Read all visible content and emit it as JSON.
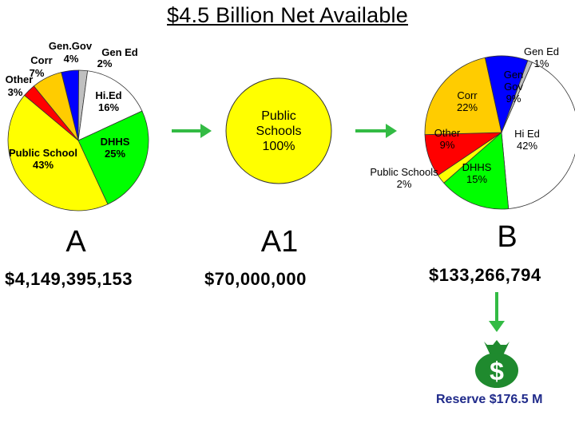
{
  "title": "$4.5 Billion Net Available",
  "arrow_color": "#33bb44",
  "chart_data": [
    {
      "type": "pie",
      "id": "A",
      "caption": "A",
      "amount": "$4,149,395,153",
      "slices": [
        {
          "label_lines": [
            "Gen.Gov",
            "4%"
          ],
          "value": 4,
          "color": "#0000ff"
        },
        {
          "label_lines": [
            "Gen Ed",
            "2%"
          ],
          "value": 2,
          "color": "#c0c0c0"
        },
        {
          "label_lines": [
            "Hi.Ed",
            "16%"
          ],
          "value": 16,
          "color": "#ffffff"
        },
        {
          "label_lines": [
            "DHHS",
            "25%"
          ],
          "value": 25,
          "color": "#00ff00"
        },
        {
          "label_lines": [
            "Public School",
            "43%"
          ],
          "value": 43,
          "color": "#ffff00"
        },
        {
          "label_lines": [
            "Other",
            "3%"
          ],
          "value": 3,
          "color": "#ff0000"
        },
        {
          "label_lines": [
            "Corr",
            "7%"
          ],
          "value": 7,
          "color": "#ffcc00"
        }
      ]
    },
    {
      "type": "pie",
      "id": "A1",
      "caption": "A1",
      "amount": "$70,000,000",
      "slices": [
        {
          "label_lines": [
            "Public",
            "Schools",
            "100%"
          ],
          "value": 100,
          "color": "#ffff00"
        }
      ]
    },
    {
      "type": "pie",
      "id": "B",
      "caption": "B",
      "amount": "$133,266,794",
      "slices": [
        {
          "label_lines": [
            "Gen Ed",
            "1%"
          ],
          "value": 1,
          "color": "#c0c0c0"
        },
        {
          "label_lines": [
            "Hi Ed",
            "42%"
          ],
          "value": 42,
          "color": "#ffffff"
        },
        {
          "label_lines": [
            "DHHS",
            "15%"
          ],
          "value": 15,
          "color": "#00ff00"
        },
        {
          "label_lines": [
            "Public Schools",
            "2%"
          ],
          "value": 2,
          "color": "#ffff00"
        },
        {
          "label_lines": [
            "Other",
            "9%"
          ],
          "value": 9,
          "color": "#ff0000"
        },
        {
          "label_lines": [
            "Corr",
            "22%"
          ],
          "value": 22,
          "color": "#ffcc00"
        },
        {
          "label_lines": [
            "Gen",
            "Gov",
            "9%"
          ],
          "value": 9,
          "color": "#0000ff"
        }
      ]
    }
  ],
  "reserve": {
    "label": "Reserve $176.5 M",
    "symbol": "$",
    "bag_color": "#1f8a2e",
    "arrow_color": "#33bb44"
  }
}
